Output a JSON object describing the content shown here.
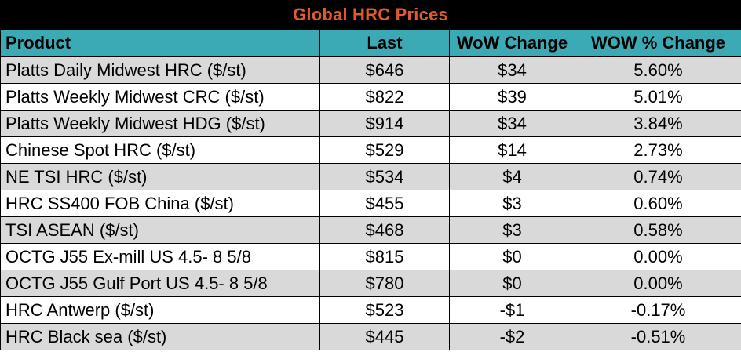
{
  "chart_data": {
    "type": "table",
    "title": "Global HRC Prices",
    "columns": [
      "Product",
      "Last",
      "WoW Change",
      "WOW % Change"
    ],
    "rows": [
      [
        "Platts Daily Midwest HRC ($/st)",
        "$646",
        "$34",
        "5.60%"
      ],
      [
        "Platts Weekly Midwest CRC ($/st)",
        "$822",
        "$39",
        "5.01%"
      ],
      [
        "Platts Weekly Midwest HDG ($/st)",
        "$914",
        "$34",
        "3.84%"
      ],
      [
        "Chinese Spot HRC ($/st)",
        "$529",
        "$14",
        "2.73%"
      ],
      [
        "NE TSI HRC ($/st)",
        "$534",
        "$4",
        "0.74%"
      ],
      [
        "HRC SS400 FOB China ($/st)",
        "$455",
        "$3",
        "0.60%"
      ],
      [
        "TSI ASEAN ($/st)",
        "$468",
        "$3",
        "0.58%"
      ],
      [
        "OCTG J55 Ex-mill US 4.5- 8 5/8",
        "$815",
        "$0",
        "0.00%"
      ],
      [
        "OCTG J55 Gulf Port US 4.5- 8 5/8",
        "$780",
        "$0",
        "0.00%"
      ],
      [
        "HRC Antwerp ($/st)",
        "$523",
        "-$1",
        "-0.17%"
      ],
      [
        "HRC Black sea ($/st)",
        "$445",
        "-$2",
        "-0.51%"
      ]
    ],
    "colors": {
      "title_bg": "#000000",
      "title_text": "#E05A2C",
      "header_bg": "#3BAAB4",
      "row_shaded": "#D9D9D9",
      "row_plain": "#FFFFFF",
      "border": "#000000"
    }
  }
}
